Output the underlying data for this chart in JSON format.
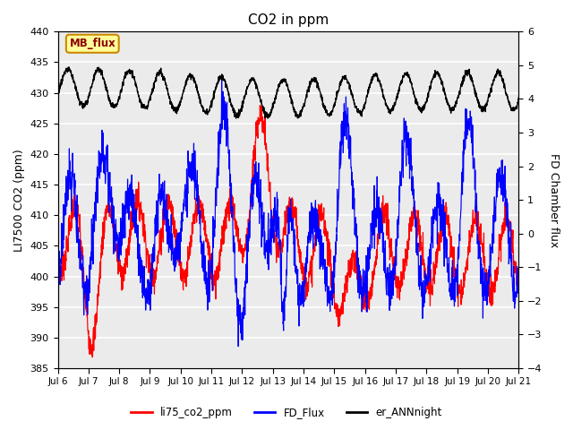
{
  "title": "CO2 in ppm",
  "ylabel_left": "LI7500 CO2 (ppm)",
  "ylabel_right": "FD Chamber flux",
  "ylim_left": [
    385,
    440
  ],
  "ylim_right": [
    -4.0,
    6.0
  ],
  "yticks_left": [
    385,
    390,
    395,
    400,
    405,
    410,
    415,
    420,
    425,
    430,
    435,
    440
  ],
  "yticks_right": [
    -4.0,
    -3.0,
    -2.0,
    -1.0,
    0.0,
    1.0,
    2.0,
    3.0,
    4.0,
    5.0,
    6.0
  ],
  "xtick_labels": [
    "Jul 6",
    "Jul 7",
    "Jul 8",
    "Jul 9",
    "Jul 10",
    "Jul 11",
    "Jul 12",
    "Jul 13",
    "Jul 14",
    "Jul 15",
    "Jul 16",
    "Jul 17",
    "Jul 18",
    "Jul 19",
    "Jul 20",
    "Jul 21"
  ],
  "color_red": "#ff0000",
  "color_blue": "#0000ff",
  "color_black": "#000000",
  "plot_bg": "#ebebeb",
  "annotation_box_color": "#ffff99",
  "annotation_box_edge": "#cc8800",
  "annotation_text": "MB_flux",
  "legend_labels": [
    "li75_co2_ppm",
    "FD_Flux",
    "er_ANNnight"
  ],
  "legend_colors": [
    "#ff0000",
    "#0000ff",
    "#000000"
  ]
}
